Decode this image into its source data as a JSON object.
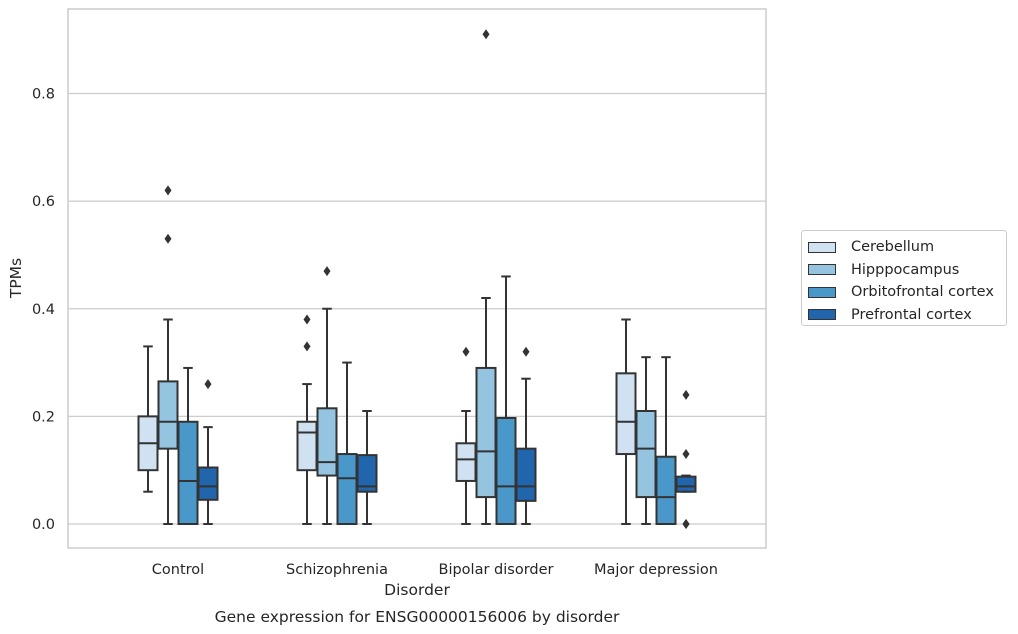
{
  "chart_data": {
    "type": "box",
    "title": "Gene expression for ENSG00000156006 by disorder",
    "xlabel": "Disorder",
    "ylabel": "TPMs",
    "categories": [
      "Control",
      "Schizophrenia",
      "Bipolar disorder",
      "Major depression"
    ],
    "ylim": [
      -0.045,
      0.96
    ],
    "yticks": [
      "0.0",
      "0.2",
      "0.4",
      "0.6",
      "0.8"
    ],
    "grid": "horizontal",
    "legend_position": "right",
    "series": [
      {
        "name": "Cerebellum",
        "color": "#d0e1f2",
        "boxes": [
          {
            "whisker_low": 0.06,
            "q1": 0.1,
            "median": 0.15,
            "q3": 0.2,
            "whisker_high": 0.33,
            "outliers": []
          },
          {
            "whisker_low": 0.0,
            "q1": 0.1,
            "median": 0.17,
            "q3": 0.19,
            "whisker_high": 0.26,
            "outliers": [
              0.33,
              0.38
            ]
          },
          {
            "whisker_low": 0.0,
            "q1": 0.08,
            "median": 0.12,
            "q3": 0.15,
            "whisker_high": 0.21,
            "outliers": [
              0.32
            ]
          },
          {
            "whisker_low": 0.0,
            "q1": 0.13,
            "median": 0.19,
            "q3": 0.28,
            "whisker_high": 0.38,
            "outliers": []
          }
        ]
      },
      {
        "name": "Hipppocampus",
        "color": "#94c4df",
        "boxes": [
          {
            "whisker_low": 0.0,
            "q1": 0.14,
            "median": 0.19,
            "q3": 0.265,
            "whisker_high": 0.38,
            "outliers": [
              0.53,
              0.62
            ]
          },
          {
            "whisker_low": 0.0,
            "q1": 0.09,
            "median": 0.115,
            "q3": 0.215,
            "whisker_high": 0.4,
            "outliers": [
              0.47
            ]
          },
          {
            "whisker_low": 0.0,
            "q1": 0.05,
            "median": 0.135,
            "q3": 0.29,
            "whisker_high": 0.42,
            "outliers": [
              0.91
            ]
          },
          {
            "whisker_low": 0.0,
            "q1": 0.05,
            "median": 0.14,
            "q3": 0.21,
            "whisker_high": 0.31,
            "outliers": []
          }
        ]
      },
      {
        "name": "Orbitofrontal cortex",
        "color": "#4a98c9",
        "boxes": [
          {
            "whisker_low": 0.0,
            "q1": 0.0,
            "median": 0.08,
            "q3": 0.19,
            "whisker_high": 0.29,
            "outliers": []
          },
          {
            "whisker_low": 0.0,
            "q1": 0.0,
            "median": 0.085,
            "q3": 0.13,
            "whisker_high": 0.3,
            "outliers": []
          },
          {
            "whisker_low": 0.0,
            "q1": 0.0,
            "median": 0.07,
            "q3": 0.197,
            "whisker_high": 0.46,
            "outliers": []
          },
          {
            "whisker_low": 0.0,
            "q1": 0.0,
            "median": 0.05,
            "q3": 0.125,
            "whisker_high": 0.31,
            "outliers": []
          }
        ]
      },
      {
        "name": "Prefrontal cortex",
        "color": "#2166ac",
        "boxes": [
          {
            "whisker_low": 0.0,
            "q1": 0.045,
            "median": 0.07,
            "q3": 0.105,
            "whisker_high": 0.18,
            "outliers": [
              0.26
            ]
          },
          {
            "whisker_low": 0.0,
            "q1": 0.06,
            "median": 0.07,
            "q3": 0.128,
            "whisker_high": 0.21,
            "outliers": []
          },
          {
            "whisker_low": 0.0,
            "q1": 0.043,
            "median": 0.07,
            "q3": 0.14,
            "whisker_high": 0.27,
            "outliers": [
              0.32
            ]
          },
          {
            "whisker_low": 0.06,
            "q1": 0.06,
            "median": 0.07,
            "q3": 0.088,
            "whisker_high": 0.09,
            "outliers": [
              0.0,
              0.0,
              0.13,
              0.24
            ]
          }
        ]
      }
    ]
  }
}
